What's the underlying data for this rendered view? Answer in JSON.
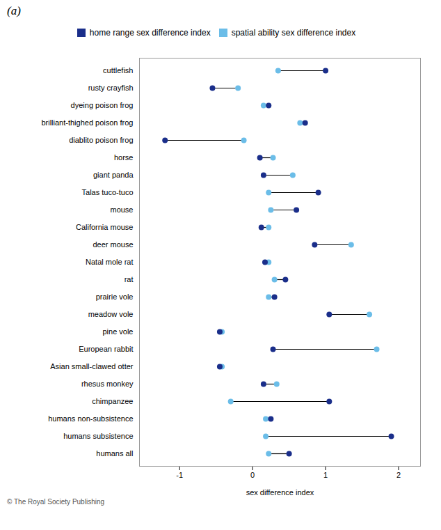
{
  "chart_data": {
    "type": "dumbbell",
    "categories": [
      "cuttlefish",
      "rusty crayfish",
      "dyeing poison frog",
      "brilliant-thighed poison frog",
      "diablito poison frog",
      "horse",
      "giant panda",
      "Talas tuco-tuco",
      "mouse",
      "California mouse",
      "deer mouse",
      "Natal mole rat",
      "rat",
      "prairie vole",
      "meadow vole",
      "pine vole",
      "European rabbit",
      "Asian small-clawed otter",
      "rhesus monkey",
      "chimpanzee",
      "humans non-subsistence",
      "humans subsistence",
      "humans all"
    ],
    "series": [
      {
        "name": "home range sex difference index",
        "color": "#1a2e8a",
        "values": [
          1.0,
          -0.55,
          0.22,
          0.72,
          -1.2,
          0.1,
          0.15,
          0.9,
          0.6,
          0.12,
          0.85,
          0.17,
          0.45,
          0.3,
          1.05,
          -0.45,
          0.28,
          -0.45,
          0.15,
          1.05,
          0.25,
          1.9,
          0.5
        ]
      },
      {
        "name": "spatial ability sex difference index",
        "color": "#6bbde8",
        "values": [
          0.35,
          -0.2,
          0.15,
          0.65,
          -0.12,
          0.28,
          0.55,
          0.22,
          0.25,
          0.22,
          1.35,
          0.22,
          0.3,
          0.22,
          1.6,
          -0.42,
          1.7,
          -0.42,
          0.33,
          -0.3,
          0.18,
          0.18,
          0.22
        ]
      }
    ],
    "color": "black",
    "xlabel": "sex difference index",
    "xlim": [
      -1.55,
      2.3
    ],
    "xticks": [
      -1,
      0,
      1,
      2
    ],
    "grid": false,
    "legend": "top",
    "annotations": [
      "(a)",
      "© The Royal Society Publishing"
    ]
  }
}
